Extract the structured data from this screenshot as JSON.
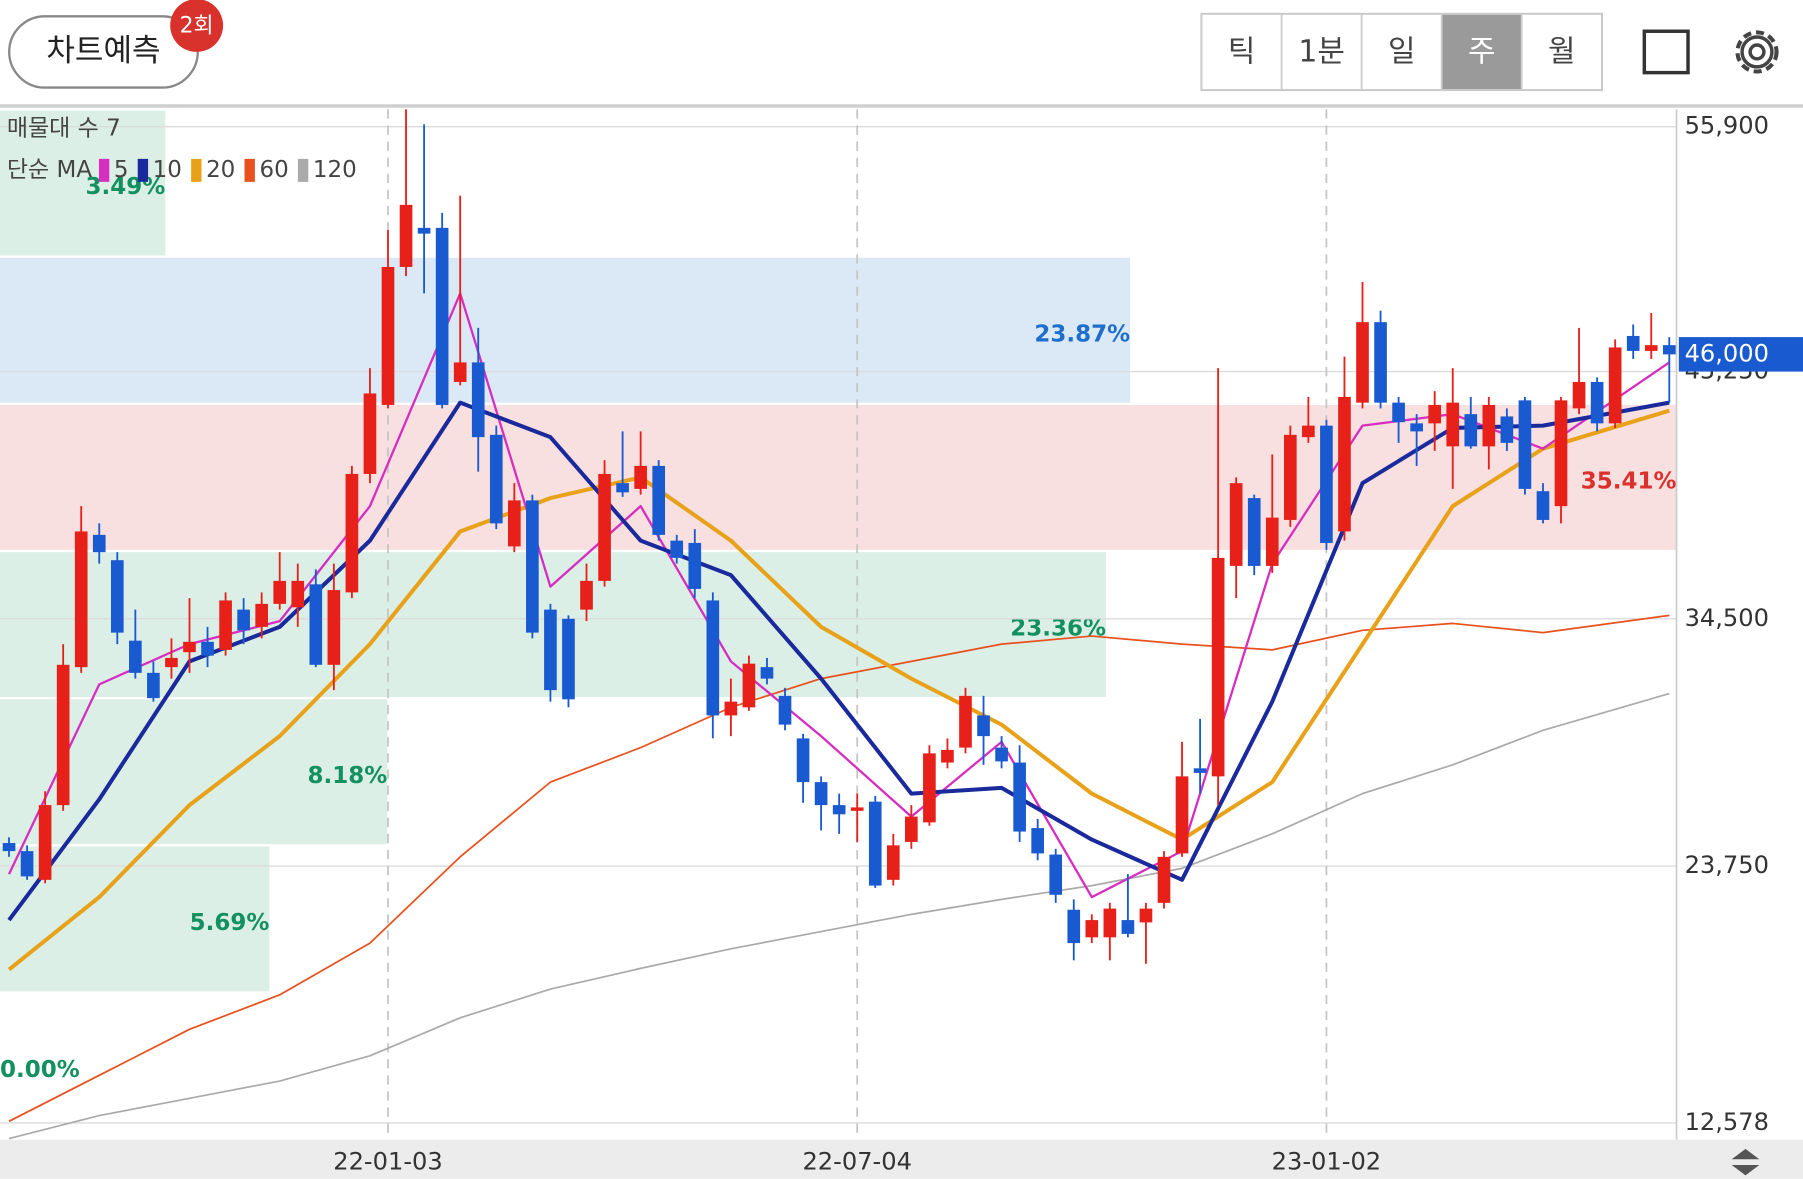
{
  "header": {
    "predict_button": "차트예측",
    "badge": "2회",
    "tabs": [
      "틱",
      "1분",
      "일",
      "주",
      "월"
    ],
    "selected_tab": 3
  },
  "chart_data": {
    "type": "candlestick",
    "open": [
      24750,
      24400,
      23150,
      26400,
      32400,
      38150,
      37050,
      33550,
      32150,
      32400,
      33050,
      33500,
      33150,
      34900,
      34150,
      35150,
      35000,
      36000,
      32500,
      35650,
      40800,
      43800,
      49800,
      51500,
      51500,
      44800,
      45650,
      42500,
      37650,
      39650,
      34900,
      34500,
      34900,
      36150,
      40400,
      40150,
      41150,
      37900,
      37800,
      35300,
      30300,
      30650,
      32400,
      31150,
      29300,
      27400,
      26400,
      26150,
      26550,
      23150,
      24800,
      25650,
      28250,
      28900,
      30300,
      28900,
      28250,
      25400,
      24250,
      21850,
      20650,
      20650,
      21400,
      21300,
      22150,
      24300,
      28000,
      27650,
      36800,
      39750,
      36800,
      38800,
      42400,
      42900,
      38300,
      43900,
      47400,
      43900,
      43000,
      43000,
      42000,
      43400,
      42000,
      43300,
      44000,
      40050,
      39400,
      43650,
      44800,
      43000,
      46800,
      46150,
      46400
    ],
    "high": [
      25000,
      24650,
      27000,
      33400,
      39400,
      38650,
      37400,
      34900,
      32650,
      33650,
      35400,
      34150,
      35650,
      35400,
      35650,
      37400,
      36900,
      36650,
      36900,
      41150,
      45400,
      51400,
      56650,
      56000,
      52150,
      52900,
      47150,
      42900,
      40400,
      39900,
      35150,
      34650,
      36900,
      41400,
      42650,
      42650,
      41400,
      38150,
      38400,
      35650,
      31900,
      32900,
      32800,
      31500,
      29500,
      27650,
      26900,
      26900,
      26800,
      25150,
      26400,
      29000,
      29300,
      31500,
      31150,
      29400,
      29000,
      25800,
      24500,
      22300,
      21650,
      22150,
      23400,
      22150,
      24400,
      29150,
      30150,
      45400,
      40650,
      39900,
      41650,
      42900,
      44150,
      43150,
      45900,
      49150,
      47900,
      44150,
      43400,
      44400,
      45400,
      44150,
      44150,
      43650,
      44150,
      40400,
      44150,
      47150,
      45000,
      46650,
      47300,
      47800,
      46750
    ],
    "low": [
      24150,
      23150,
      23000,
      26150,
      32150,
      36900,
      33400,
      31900,
      30900,
      31900,
      32150,
      32400,
      32900,
      33400,
      33650,
      34900,
      34150,
      32400,
      31400,
      35400,
      40400,
      43650,
      49400,
      48650,
      43650,
      44650,
      40900,
      38400,
      37400,
      33650,
      30900,
      30650,
      34400,
      35900,
      39800,
      39900,
      37900,
      36900,
      35400,
      29300,
      29400,
      30500,
      31650,
      29650,
      26500,
      25300,
      25150,
      24800,
      22800,
      22900,
      24500,
      25500,
      28000,
      28650,
      28150,
      28000,
      24800,
      24000,
      22150,
      19650,
      20400,
      19650,
      20650,
      19500,
      21900,
      24150,
      26900,
      26400,
      35400,
      36400,
      36500,
      38500,
      42150,
      37500,
      37900,
      43650,
      43650,
      42150,
      41150,
      41800,
      40150,
      41900,
      41000,
      41800,
      39900,
      38650,
      38650,
      43400,
      42650,
      42800,
      45800,
      45800,
      43900
    ],
    "close": [
      24400,
      23300,
      26400,
      32500,
      38300,
      37400,
      33900,
      32150,
      31050,
      32800,
      33500,
      32900,
      35300,
      34000,
      35150,
      36150,
      36150,
      32500,
      35750,
      40800,
      44300,
      49800,
      52500,
      51250,
      43800,
      45650,
      42400,
      38650,
      39650,
      33900,
      31400,
      31000,
      36150,
      40800,
      40000,
      41150,
      38150,
      37150,
      35800,
      30300,
      30900,
      32550,
      31900,
      29900,
      27400,
      26400,
      26000,
      26300,
      22900,
      24650,
      25900,
      28650,
      28800,
      31150,
      29400,
      28300,
      25250,
      24300,
      22500,
      20400,
      21400,
      21900,
      20800,
      21900,
      24150,
      27650,
      27800,
      37150,
      40400,
      36800,
      38900,
      42500,
      42900,
      37800,
      44150,
      47400,
      43900,
      43050,
      42650,
      43800,
      43900,
      42000,
      43800,
      42150,
      40150,
      38800,
      44000,
      44800,
      43000,
      46300,
      46150,
      46400,
      46000
    ],
    "up_color": "#e8201a",
    "down_color": "#1a5ad0",
    "xlim": [
      -0.5,
      92.4
    ],
    "xticks": [
      {
        "value": 21,
        "label": "22-01-03"
      },
      {
        "value": 47,
        "label": "22-07-04"
      },
      {
        "value": 73,
        "label": "23-01-02"
      }
    ],
    "ylim": [
      11850,
      56650
    ],
    "yticks": [
      {
        "value": 55900,
        "label": "55,900"
      },
      {
        "value": 45250,
        "label": "45,250"
      },
      {
        "value": 34500,
        "label": "34,500"
      },
      {
        "value": 23750,
        "label": "23,750"
      },
      {
        "value": 12578,
        "label": "12,578"
      }
    ],
    "grid": true,
    "current_price": {
      "value": 46000,
      "label": "46,000",
      "color": "#1a5ad0"
    },
    "ma_label": "단순 MA",
    "series": [
      {
        "name": "5",
        "color": "#d62ec0",
        "width": 2,
        "x": [
          0,
          5,
          10,
          15,
          20,
          25,
          30,
          35,
          40,
          45,
          50,
          55,
          60,
          65,
          70,
          75,
          80,
          85,
          92
        ],
        "values": [
          23400,
          31650,
          33400,
          34400,
          39400,
          48650,
          35900,
          39400,
          32650,
          29400,
          25900,
          29150,
          22400,
          24400,
          36900,
          42900,
          43400,
          41900,
          45650
        ]
      },
      {
        "name": "10",
        "color": "#1a2a9c",
        "width": 3.5,
        "x": [
          0,
          5,
          10,
          15,
          20,
          25,
          30,
          35,
          40,
          45,
          50,
          55,
          60,
          65,
          70,
          75,
          80,
          85,
          92
        ],
        "values": [
          21400,
          26650,
          32650,
          34150,
          37900,
          43900,
          42400,
          37900,
          36400,
          31900,
          26900,
          27150,
          24900,
          23150,
          30900,
          40400,
          42800,
          42900,
          43900
        ]
      },
      {
        "name": "20",
        "color": "#e8a21a",
        "width": 3.5,
        "x": [
          0,
          5,
          10,
          15,
          20,
          25,
          30,
          35,
          40,
          45,
          50,
          55,
          60,
          65,
          70,
          75,
          80,
          85,
          92
        ],
        "values": [
          19250,
          22400,
          26400,
          29400,
          33400,
          38300,
          39750,
          40650,
          37900,
          34150,
          31900,
          29900,
          26900,
          24900,
          27400,
          33400,
          39400,
          41900,
          43550
        ]
      },
      {
        "name": "60",
        "color": "#e8501e",
        "width": 1.5,
        "x": [
          0,
          5,
          10,
          15,
          20,
          25,
          30,
          35,
          40,
          45,
          50,
          55,
          60,
          65,
          70,
          75,
          80,
          85,
          92
        ],
        "values": [
          12650,
          14650,
          16650,
          18150,
          20400,
          24150,
          27400,
          28900,
          30650,
          31900,
          32650,
          33400,
          33750,
          33400,
          33150,
          34000,
          34300,
          33900,
          34650
        ]
      },
      {
        "name": "120",
        "color": "#aaaaaa",
        "width": 1.5,
        "x": [
          0,
          5,
          10,
          15,
          20,
          25,
          30,
          35,
          40,
          45,
          50,
          55,
          60,
          65,
          70,
          75,
          80,
          85,
          92
        ],
        "values": [
          11900,
          12900,
          13650,
          14400,
          15500,
          17150,
          18400,
          19300,
          20150,
          20900,
          21650,
          22300,
          22900,
          23650,
          25150,
          26900,
          28150,
          29650,
          31250
        ]
      }
    ],
    "volume_profile": {
      "title": "매물대 수 7",
      "bands": [
        {
          "low": 50250,
          "high": 56650,
          "value": 3.49,
          "label": "3.49%",
          "color": "#dcefe6",
          "label_color": "#129060"
        },
        {
          "low": 43850,
          "high": 50250,
          "value": 23.87,
          "label": "23.87%",
          "color": "#dbe9f7",
          "label_color": "#1e6fcc"
        },
        {
          "low": 37450,
          "high": 43850,
          "value": 35.41,
          "label": "35.41%",
          "color": "#f8dfe0",
          "label_color": "#d9312b"
        },
        {
          "low": 31050,
          "high": 37450,
          "value": 23.36,
          "label": "23.36%",
          "color": "#dcefe6",
          "label_color": "#129060"
        },
        {
          "low": 24650,
          "high": 31050,
          "value": 8.18,
          "label": "8.18%",
          "color": "#dcefe6",
          "label_color": "#129060"
        },
        {
          "low": 18250,
          "high": 24650,
          "value": 5.69,
          "label": "5.69%",
          "color": "#dcefe6",
          "label_color": "#129060"
        },
        {
          "low": 11850,
          "high": 18250,
          "value": 0,
          "label": "0.00%",
          "color": "#dcefe6",
          "label_color": "#129060"
        }
      ]
    }
  }
}
